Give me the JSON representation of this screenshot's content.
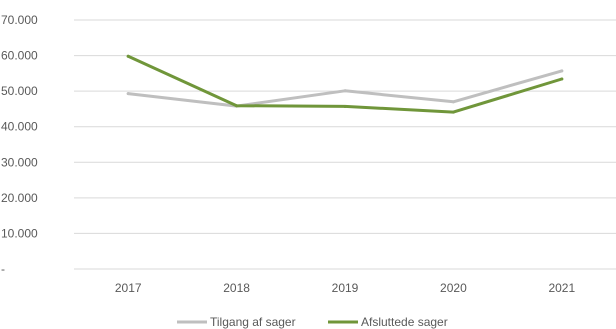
{
  "chart_data": {
    "type": "line",
    "categories": [
      "2017",
      "2018",
      "2019",
      "2020",
      "2021"
    ],
    "series": [
      {
        "name": "Tilgang af sager",
        "values": [
          49300,
          45800,
          50100,
          47000,
          55700
        ],
        "color": "#bfbfbf"
      },
      {
        "name": "Afsluttede sager",
        "values": [
          59800,
          45900,
          45700,
          44100,
          53400
        ],
        "color": "#70963a"
      }
    ],
    "ylim": [
      0,
      70000
    ],
    "yticks": [
      {
        "value": 0,
        "label": "-"
      },
      {
        "value": 10000,
        "label": "10.000"
      },
      {
        "value": 20000,
        "label": "20.000"
      },
      {
        "value": 30000,
        "label": "30.000"
      },
      {
        "value": 40000,
        "label": "40.000"
      },
      {
        "value": 50000,
        "label": "50.000"
      },
      {
        "value": 60000,
        "label": "60.000"
      },
      {
        "value": 70000,
        "label": "70.000"
      }
    ],
    "grid": true,
    "gridline_color": "#d9d9d9",
    "legend_position": "bottom"
  }
}
